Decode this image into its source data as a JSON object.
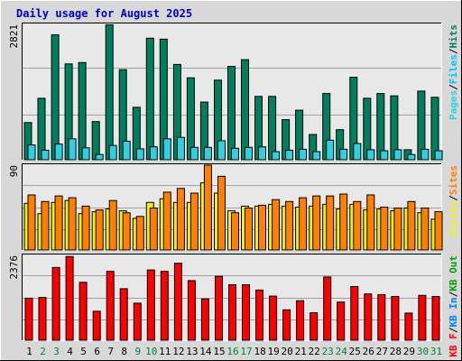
{
  "title": "Daily usage for August 2025",
  "colors": {
    "frame_bg": "#d8d8d8",
    "plot_bg": "#e8e8e8",
    "title": "#0000c0",
    "hits": "#007f5f",
    "files": "#00c0ff",
    "pages": "#30d0e0",
    "visits": "#f0f000",
    "sites": "#ff8000",
    "kbin": "#0080ff",
    "kbout": "#00a000",
    "kbf": "#ff0000",
    "day_normal": "#000000",
    "day_weekend": "#008040"
  },
  "chart_data": [
    {
      "type": "bar",
      "panel": "hits-files-pages",
      "max_label": "2821",
      "ymax": 2821,
      "legend": [
        {
          "text": "Pages",
          "color": "#30d0e0"
        },
        {
          "text": "/",
          "color": "#000000"
        },
        {
          "text": "Files",
          "color": "#00c0ff"
        },
        {
          "text": "/",
          "color": "#000000"
        },
        {
          "text": "Hits",
          "color": "#007f5f"
        }
      ],
      "series": [
        {
          "name": "Hits",
          "color": "#007f5f",
          "values": [
            780,
            1290,
            2620,
            2010,
            2040,
            800,
            2830,
            1890,
            1100,
            2550,
            2530,
            2000,
            1720,
            1210,
            1670,
            1960,
            2100,
            1330,
            1330,
            840,
            1040,
            530,
            1390,
            630,
            1730,
            1290,
            1390,
            1340,
            210,
            1440,
            1310
          ]
        },
        {
          "name": "Files",
          "color": "#30d0e0",
          "values": [
            310,
            200,
            330,
            440,
            250,
            110,
            300,
            390,
            230,
            270,
            440,
            470,
            260,
            260,
            400,
            240,
            260,
            270,
            170,
            200,
            220,
            170,
            410,
            220,
            340,
            210,
            190,
            210,
            110,
            220,
            190
          ]
        }
      ]
    },
    {
      "type": "bar",
      "panel": "visits-sites",
      "max_label": "90",
      "ymax": 90,
      "legend": [
        {
          "text": "Visits",
          "color": "#f0f000"
        },
        {
          "text": "/",
          "color": "#000000"
        },
        {
          "text": "Sites",
          "color": "#ff8000"
        }
      ],
      "series": [
        {
          "name": "Visits",
          "color": "#f0f000",
          "values": [
            50,
            39,
            51,
            53,
            39,
            41,
            44,
            42,
            34,
            51,
            55,
            51,
            51,
            72,
            61,
            42,
            47,
            47,
            49,
            47,
            46,
            47,
            49,
            44,
            49,
            43,
            44,
            42,
            45,
            40,
            33
          ]
        },
        {
          "name": "Sites",
          "color": "#ff8000",
          "values": [
            59,
            52,
            58,
            56,
            47,
            43,
            53,
            40,
            36,
            45,
            62,
            66,
            61,
            91,
            79,
            40,
            45,
            48,
            54,
            52,
            56,
            58,
            58,
            60,
            52,
            59,
            46,
            45,
            52,
            45,
            41
          ]
        }
      ]
    },
    {
      "type": "bar",
      "panel": "kbytes",
      "max_label": "2376",
      "ymax": 2376,
      "legend": [
        {
          "text": "KB F",
          "color": "#ff0000"
        },
        {
          "text": "/",
          "color": "#000000"
        },
        {
          "text": "KB In",
          "color": "#0080ff"
        },
        {
          "text": "/",
          "color": "#000000"
        },
        {
          "text": "KB Out",
          "color": "#00a000"
        }
      ],
      "series": [
        {
          "name": "KB F",
          "color": "#ff0000",
          "values": [
            1190,
            1210,
            2060,
            2370,
            1640,
            820,
            1950,
            1460,
            1050,
            1990,
            1950,
            2180,
            1690,
            1170,
            1810,
            1570,
            1570,
            1420,
            1250,
            860,
            1120,
            780,
            1790,
            1080,
            1520,
            1310,
            1290,
            1240,
            770,
            1270,
            1240
          ]
        }
      ]
    }
  ],
  "days": [
    {
      "label": "1",
      "weekend": false
    },
    {
      "label": "2",
      "weekend": true
    },
    {
      "label": "3",
      "weekend": true
    },
    {
      "label": "4",
      "weekend": false
    },
    {
      "label": "5",
      "weekend": false
    },
    {
      "label": "6",
      "weekend": false
    },
    {
      "label": "7",
      "weekend": false
    },
    {
      "label": "8",
      "weekend": false
    },
    {
      "label": "9",
      "weekend": true
    },
    {
      "label": "10",
      "weekend": true
    },
    {
      "label": "11",
      "weekend": false
    },
    {
      "label": "12",
      "weekend": false
    },
    {
      "label": "13",
      "weekend": false
    },
    {
      "label": "14",
      "weekend": false
    },
    {
      "label": "15",
      "weekend": false
    },
    {
      "label": "16",
      "weekend": true
    },
    {
      "label": "17",
      "weekend": true
    },
    {
      "label": "18",
      "weekend": false
    },
    {
      "label": "19",
      "weekend": false
    },
    {
      "label": "20",
      "weekend": false
    },
    {
      "label": "21",
      "weekend": false
    },
    {
      "label": "22",
      "weekend": false
    },
    {
      "label": "23",
      "weekend": true
    },
    {
      "label": "24",
      "weekend": true
    },
    {
      "label": "25",
      "weekend": false
    },
    {
      "label": "26",
      "weekend": false
    },
    {
      "label": "27",
      "weekend": false
    },
    {
      "label": "28",
      "weekend": false
    },
    {
      "label": "29",
      "weekend": false
    },
    {
      "label": "30",
      "weekend": true
    },
    {
      "label": "31",
      "weekend": true
    }
  ]
}
